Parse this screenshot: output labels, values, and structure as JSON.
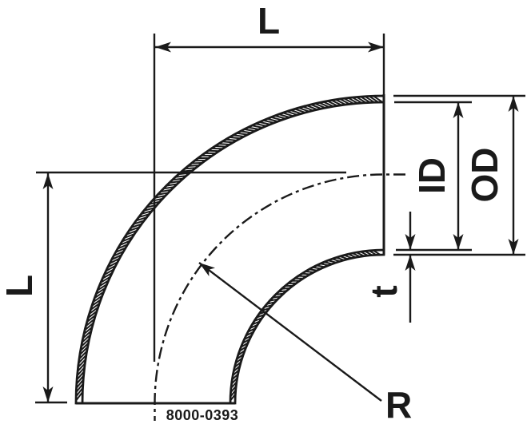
{
  "drawing": {
    "labels": {
      "length_top": "L",
      "length_left": "L",
      "inner_diameter": "ID",
      "outer_diameter": "OD",
      "wall_thickness": "t",
      "bend_radius": "R"
    },
    "drawing_number": "8000-0393",
    "colors": {
      "line": "#1a1a1a",
      "background": "#ffffff"
    }
  }
}
